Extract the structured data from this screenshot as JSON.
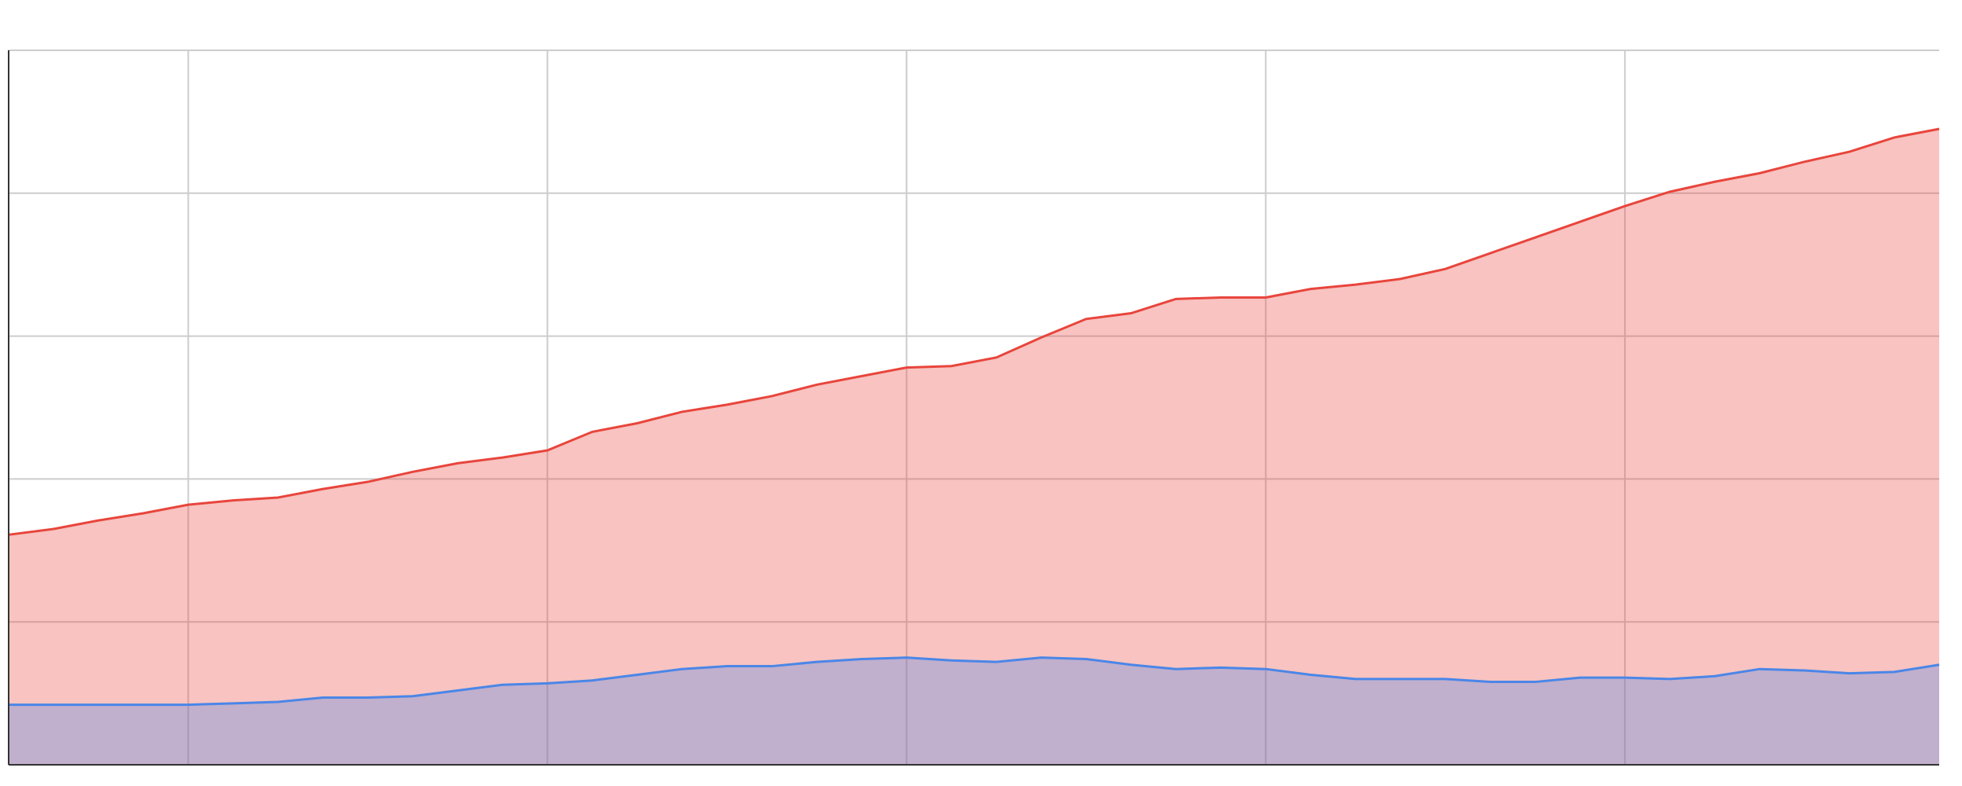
{
  "chart_data": {
    "type": "area",
    "x": [
      0,
      1,
      2,
      3,
      4,
      5,
      6,
      7,
      8,
      9,
      10,
      11,
      12,
      13,
      14,
      15,
      16,
      17,
      18,
      19,
      20,
      21,
      22,
      23,
      24,
      25,
      26,
      27,
      28,
      29,
      30,
      31,
      32,
      33,
      34,
      35,
      36,
      37,
      38,
      39,
      40,
      41,
      42,
      43
    ],
    "series": [
      {
        "color": "#e8453c",
        "values": [
          1.61,
          1.65,
          1.71,
          1.76,
          1.82,
          1.85,
          1.87,
          1.93,
          1.98,
          2.05,
          2.11,
          2.15,
          2.2,
          2.33,
          2.39,
          2.47,
          2.52,
          2.58,
          2.66,
          2.72,
          2.78,
          2.79,
          2.85,
          2.99,
          3.12,
          3.16,
          3.26,
          3.27,
          3.27,
          3.33,
          3.36,
          3.4,
          3.47,
          3.58,
          3.69,
          3.8,
          3.91,
          4.01,
          4.08,
          4.14,
          4.22,
          4.29,
          4.39,
          4.45
        ]
      },
      {
        "color": "#4a86e8",
        "values": [
          0.42,
          0.42,
          0.42,
          0.42,
          0.42,
          0.43,
          0.44,
          0.47,
          0.47,
          0.48,
          0.52,
          0.56,
          0.57,
          0.59,
          0.63,
          0.67,
          0.69,
          0.69,
          0.72,
          0.74,
          0.75,
          0.73,
          0.72,
          0.75,
          0.74,
          0.7,
          0.67,
          0.68,
          0.67,
          0.63,
          0.6,
          0.6,
          0.6,
          0.58,
          0.58,
          0.61,
          0.61,
          0.6,
          0.62,
          0.67,
          0.66,
          0.64,
          0.65,
          0.7
        ]
      }
    ],
    "xlim": [
      0,
      43
    ],
    "xticks": [
      4,
      12,
      20,
      28,
      36
    ],
    "ylim": [
      0,
      5
    ],
    "yticks": [
      0,
      1,
      2,
      3,
      4,
      5
    ],
    "grid": true
  }
}
